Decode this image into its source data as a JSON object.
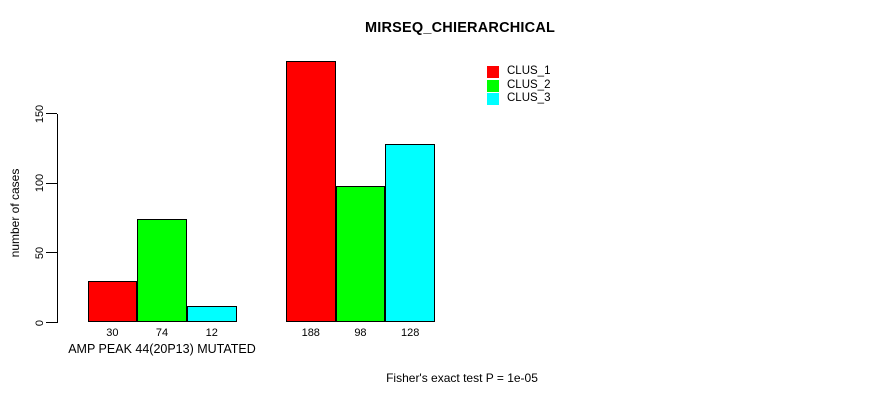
{
  "chart_data": {
    "type": "bar",
    "title": "MIRSEQ_CHIERARCHICAL",
    "ylabel": "number of cases",
    "xlabel": "AMP PEAK 44(20P13) MUTATED",
    "annotation": "Fisher's exact test P = 1e-05",
    "ylim": [
      0,
      150
    ],
    "yticks": [
      0,
      50,
      100,
      150
    ],
    "grid": false,
    "legend_position": "top-right",
    "categories": [
      "",
      ""
    ],
    "series": [
      {
        "name": "CLUS_1",
        "color": "#FF0000",
        "values": [
          30,
          188
        ]
      },
      {
        "name": "CLUS_2",
        "color": "#00FF00",
        "values": [
          74,
          98
        ]
      },
      {
        "name": "CLUS_3",
        "color": "#00FFFF",
        "values": [
          12,
          128
        ]
      }
    ],
    "bar_value_labels": [
      [
        30,
        74,
        12
      ],
      [
        188,
        98,
        128
      ]
    ],
    "colors": {
      "background": "#FFFFFF",
      "text": "#000000",
      "bar_border": "#000000"
    }
  }
}
